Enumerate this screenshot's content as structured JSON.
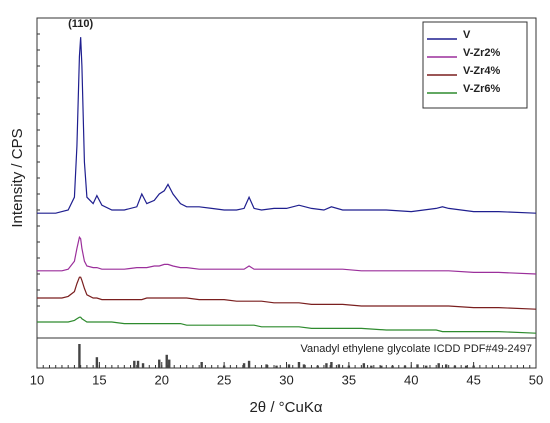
{
  "chart_data": {
    "type": "line",
    "xlabel": "2θ / °CuKα",
    "ylabel": "Intensity / CPS",
    "annotations": [
      {
        "text": "(110)",
        "x": 13.5
      }
    ],
    "x": [
      10,
      10.5,
      11,
      11.5,
      12,
      12.5,
      13,
      13.2,
      13.4,
      13.5,
      13.6,
      13.8,
      14,
      14.5,
      14.8,
      15.2,
      16,
      17,
      18,
      18.4,
      18.8,
      19.4,
      19.8,
      20.2,
      20.5,
      20.9,
      21.5,
      22,
      23,
      24,
      25,
      26,
      26.6,
      27,
      27.4,
      28,
      29,
      30,
      31,
      32,
      33,
      33.6,
      34.5,
      36,
      38,
      40,
      42,
      42.5,
      43,
      45,
      47,
      50
    ],
    "series": [
      {
        "name": "V",
        "color": "#1f1f8f",
        "values": [
          39,
          39,
          39,
          39,
          39.5,
          40,
          44,
          60,
          88,
          94,
          85,
          55,
          44,
          42,
          44.5,
          41.5,
          40,
          40,
          41,
          45,
          42,
          43,
          45,
          46,
          48,
          45,
          42,
          41,
          41,
          40.5,
          40,
          40,
          40.5,
          44,
          40.5,
          40,
          40.5,
          40.5,
          41.5,
          40.5,
          40,
          41,
          40,
          40,
          40,
          39.5,
          40.5,
          41,
          40.5,
          39.5,
          39.5,
          39
        ]
      },
      {
        "name": "V-Zr2%",
        "color": "#9b2f9b",
        "values": [
          21,
          21,
          21,
          21,
          21,
          21.5,
          24,
          28,
          31.5,
          31,
          28,
          24,
          22.5,
          22,
          22,
          21.5,
          21.5,
          21.5,
          22,
          22,
          22,
          22.5,
          22.5,
          23,
          23,
          22.5,
          22,
          22,
          21.5,
          21.5,
          21.5,
          21.5,
          21.5,
          22.5,
          21.5,
          21.5,
          21.5,
          21.5,
          21.5,
          21.5,
          21.5,
          21.5,
          21.5,
          21,
          21,
          21,
          21,
          21,
          21,
          20.5,
          20.5,
          20
        ]
      },
      {
        "name": "V-Zr4%",
        "color": "#7a1f1f",
        "values": [
          12.5,
          12.5,
          12.5,
          12.5,
          12.5,
          13,
          14.5,
          17,
          19,
          19,
          18,
          15.5,
          13.5,
          12.5,
          12.5,
          12,
          12,
          12,
          12,
          12,
          12.5,
          12.5,
          12.5,
          12.5,
          12.5,
          12.5,
          12.5,
          12.5,
          12,
          12,
          12,
          11.5,
          11.5,
          11.5,
          11.5,
          11.5,
          11,
          11,
          11,
          10.5,
          10.5,
          10.5,
          10.5,
          10,
          10,
          10,
          10,
          10,
          10,
          9.5,
          9.5,
          9
        ]
      },
      {
        "name": "V-Zr6%",
        "color": "#2e8b2e",
        "values": [
          5,
          5,
          5,
          5,
          5,
          5,
          5.5,
          6,
          6.5,
          6.5,
          6,
          5.5,
          5,
          5,
          5,
          5,
          5,
          4.5,
          4.5,
          4.5,
          4.5,
          4.5,
          4.5,
          4.5,
          4.5,
          4.5,
          4.5,
          4,
          4,
          4,
          4,
          4,
          4,
          4,
          4,
          3.5,
          3.5,
          3.5,
          3.5,
          3,
          3,
          3,
          3,
          3,
          2.5,
          2.5,
          2.5,
          2,
          2,
          2,
          2,
          1.5
        ]
      }
    ],
    "xlim": [
      10,
      50
    ],
    "xticks": [
      10,
      15,
      20,
      25,
      30,
      35,
      40,
      45,
      50
    ],
    "ylim": [
      0,
      100
    ],
    "legend": "upper right",
    "reference": {
      "label": "Vanadyl ethylene glycolate ICDD PDF#49-2497",
      "color": "#444444",
      "ylim": [
        0,
        100
      ],
      "positions": [
        13.4,
        14.8,
        17.8,
        18.1,
        18.5,
        19.8,
        20.4,
        20.6,
        23.2,
        25,
        26.6,
        27,
        28.4,
        29.2,
        30.2,
        31,
        31.4,
        32.5,
        33.2,
        33.6,
        34.2,
        35,
        36.2,
        36.8,
        37.6,
        38.5,
        39.5,
        40.5,
        41.2,
        42.2,
        42.8,
        43.5,
        44.4,
        45
      ],
      "intensities": [
        100,
        45,
        30,
        30,
        20,
        35,
        55,
        35,
        25,
        10,
        20,
        30,
        15,
        10,
        15,
        25,
        15,
        10,
        20,
        25,
        15,
        10,
        20,
        10,
        10,
        10,
        10,
        15,
        10,
        20,
        15,
        10,
        10,
        10
      ]
    }
  }
}
